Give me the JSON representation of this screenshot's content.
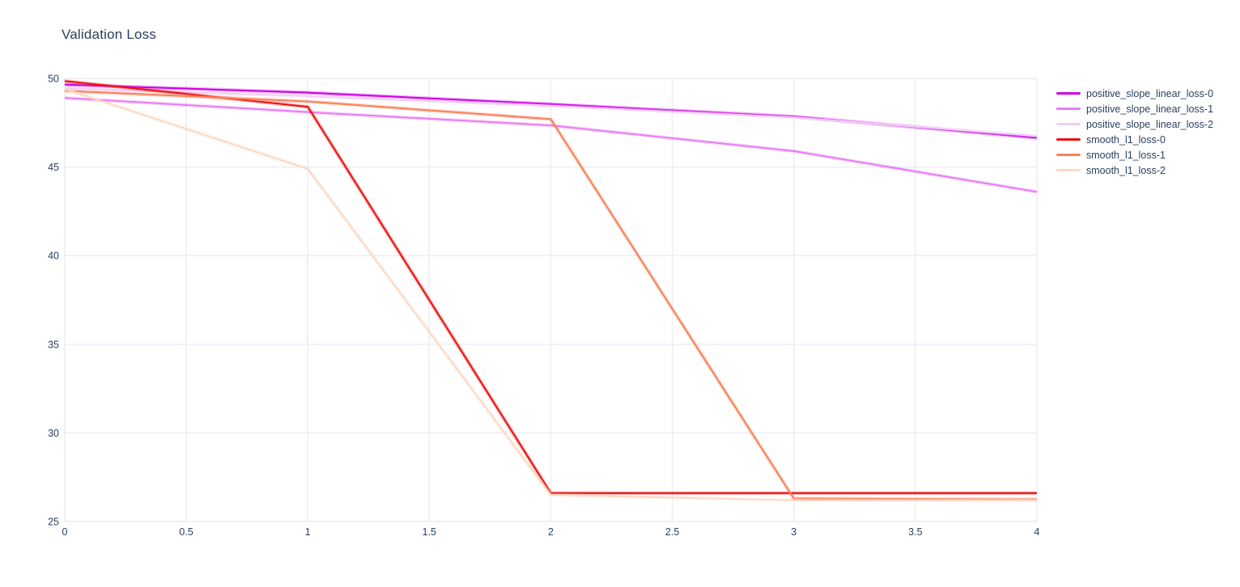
{
  "title": "Validation Loss",
  "colors": {
    "title_text": "#2a3f5f",
    "tick_text": "#2a3f5f",
    "grid": "#eaedf4",
    "background": "#ffffff"
  },
  "chart_data": {
    "type": "line",
    "title": "Validation Loss",
    "xlabel": "",
    "ylabel": "",
    "xlim": [
      0,
      4
    ],
    "ylim": [
      25,
      50
    ],
    "x_ticks": [
      0,
      0.5,
      1,
      1.5,
      2,
      2.5,
      3,
      3.5,
      4
    ],
    "y_ticks": [
      25,
      30,
      35,
      40,
      45,
      50
    ],
    "grid": true,
    "legend_position": "right",
    "x": [
      0,
      1,
      2,
      3,
      4
    ],
    "series": [
      {
        "name": "positive_slope_linear_loss-0",
        "color": "#cc00e6",
        "values": [
          49.65,
          49.2,
          48.55,
          47.85,
          46.65
        ]
      },
      {
        "name": "positive_slope_linear_loss-1",
        "color": "#e77ef2",
        "values": [
          48.9,
          48.1,
          47.35,
          45.9,
          43.6
        ]
      },
      {
        "name": "positive_slope_linear_loss-2",
        "color": "#f2cdf9",
        "values": [
          49.45,
          49.0,
          48.45,
          47.8,
          46.75
        ]
      },
      {
        "name": "smooth_l1_loss-0",
        "color": "#ef1010",
        "values": [
          49.85,
          48.4,
          26.6,
          26.6,
          26.6
        ]
      },
      {
        "name": "smooth_l1_loss-1",
        "color": "#f9815a",
        "values": [
          49.3,
          48.7,
          47.7,
          26.3,
          26.25
        ]
      },
      {
        "name": "smooth_l1_loss-2",
        "color": "#fcd9c6",
        "values": [
          49.4,
          44.9,
          26.5,
          26.2,
          26.2
        ]
      }
    ]
  }
}
